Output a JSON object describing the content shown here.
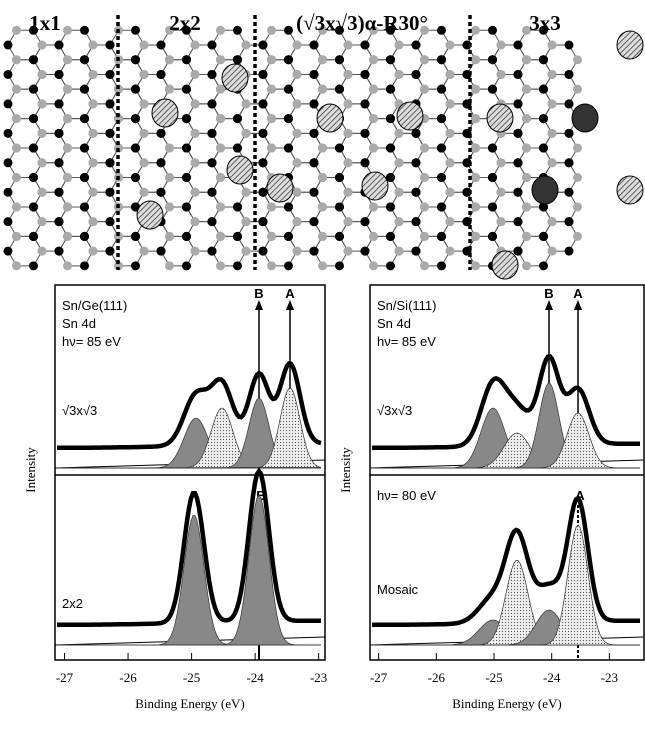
{
  "lattice": {
    "labels": [
      "1x1",
      "2x2",
      "(√3x√3)α-R30°",
      "3x3"
    ]
  },
  "panels": [
    {
      "sample": "Sn/Ge(111)",
      "core": "Sn 4d",
      "photon": "hν= 85 eV",
      "top_peaks": [
        "B",
        "A"
      ],
      "top_label": "√3x√3",
      "bottom_peak": "B",
      "bottom_label": "2x2",
      "y_label": "Intensity",
      "x_label": "Binding Energy (eV)",
      "xlim": [
        -27.15,
        -22.9
      ],
      "xticks": [
        -27,
        -26,
        -25,
        -24,
        -23
      ]
    },
    {
      "sample": "Sn/Si(111)",
      "core": "Sn 4d",
      "photon": "hν= 85 eV",
      "top_peaks": [
        "B",
        "A"
      ],
      "top_label": "√3x√3",
      "bottom_photon": "hν= 80 eV",
      "bottom_peak": "A",
      "bottom_label": "Mosaic",
      "y_label": "Intensity",
      "x_label": "Binding Energy (eV)",
      "xlim": [
        -27.15,
        -22.4
      ],
      "xticks": [
        -27,
        -26,
        -25,
        -24,
        -23
      ]
    }
  ]
}
